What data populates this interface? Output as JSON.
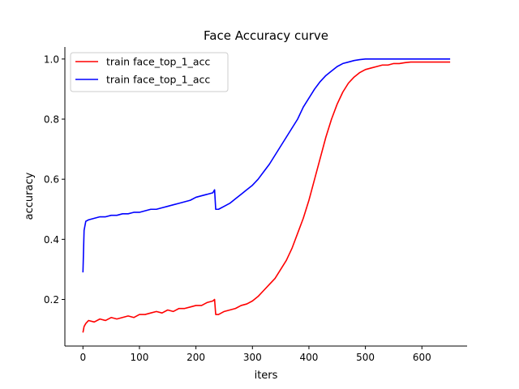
{
  "chart_data": {
    "type": "line",
    "title": "Face Accuracy curve",
    "xlabel": "iters",
    "ylabel": "accuracy",
    "xlim": [
      -32,
      680
    ],
    "ylim": [
      0.045,
      1.04
    ],
    "xticks": [
      0,
      100,
      200,
      300,
      400,
      500,
      600
    ],
    "yticks": [
      0.2,
      0.4,
      0.6,
      0.8,
      1.0
    ],
    "grid": false,
    "legend_position": "top-left",
    "series": [
      {
        "name": "train face_top_1_acc",
        "color": "#ff0000",
        "x": [
          0,
          2,
          5,
          10,
          20,
          30,
          40,
          50,
          60,
          70,
          80,
          90,
          100,
          110,
          120,
          130,
          140,
          150,
          160,
          170,
          180,
          190,
          200,
          210,
          220,
          230,
          233,
          235,
          240,
          250,
          260,
          270,
          280,
          290,
          300,
          310,
          320,
          330,
          340,
          350,
          360,
          370,
          380,
          390,
          400,
          410,
          420,
          430,
          440,
          450,
          460,
          470,
          480,
          490,
          500,
          510,
          520,
          530,
          540,
          550,
          560,
          570,
          580,
          590,
          600,
          610,
          620,
          630,
          640,
          650
        ],
        "y": [
          0.09,
          0.11,
          0.12,
          0.13,
          0.125,
          0.135,
          0.13,
          0.14,
          0.135,
          0.14,
          0.145,
          0.14,
          0.15,
          0.15,
          0.155,
          0.16,
          0.155,
          0.165,
          0.16,
          0.17,
          0.17,
          0.175,
          0.18,
          0.18,
          0.19,
          0.195,
          0.2,
          0.15,
          0.15,
          0.16,
          0.165,
          0.17,
          0.18,
          0.185,
          0.195,
          0.21,
          0.23,
          0.25,
          0.27,
          0.3,
          0.33,
          0.37,
          0.42,
          0.47,
          0.53,
          0.6,
          0.67,
          0.74,
          0.8,
          0.85,
          0.89,
          0.92,
          0.94,
          0.955,
          0.965,
          0.97,
          0.975,
          0.98,
          0.98,
          0.985,
          0.985,
          0.988,
          0.99,
          0.99,
          0.99,
          0.99,
          0.99,
          0.99,
          0.99,
          0.99
        ]
      },
      {
        "name": "train face_top_1_acc",
        "color": "#0000ff",
        "x": [
          0,
          2,
          5,
          10,
          20,
          30,
          40,
          50,
          60,
          70,
          80,
          90,
          100,
          110,
          120,
          130,
          140,
          150,
          160,
          170,
          180,
          190,
          200,
          210,
          220,
          230,
          233,
          235,
          240,
          250,
          260,
          270,
          280,
          290,
          300,
          310,
          320,
          330,
          340,
          350,
          360,
          370,
          380,
          390,
          400,
          410,
          420,
          430,
          440,
          450,
          460,
          470,
          480,
          490,
          500,
          510,
          520,
          530,
          540,
          550,
          560,
          570,
          580,
          590,
          600,
          610,
          620,
          630,
          640,
          650
        ],
        "y": [
          0.29,
          0.43,
          0.46,
          0.465,
          0.47,
          0.475,
          0.475,
          0.48,
          0.48,
          0.485,
          0.485,
          0.49,
          0.49,
          0.495,
          0.5,
          0.5,
          0.505,
          0.51,
          0.515,
          0.52,
          0.525,
          0.53,
          0.54,
          0.545,
          0.55,
          0.555,
          0.565,
          0.5,
          0.5,
          0.51,
          0.52,
          0.535,
          0.55,
          0.565,
          0.58,
          0.6,
          0.625,
          0.65,
          0.68,
          0.71,
          0.74,
          0.77,
          0.8,
          0.84,
          0.87,
          0.9,
          0.925,
          0.945,
          0.96,
          0.975,
          0.985,
          0.99,
          0.995,
          0.998,
          1.0,
          1.0,
          1.0,
          1.0,
          1.0,
          1.0,
          1.0,
          1.0,
          1.0,
          1.0,
          1.0,
          1.0,
          1.0,
          1.0,
          1.0,
          1.0
        ]
      }
    ]
  }
}
